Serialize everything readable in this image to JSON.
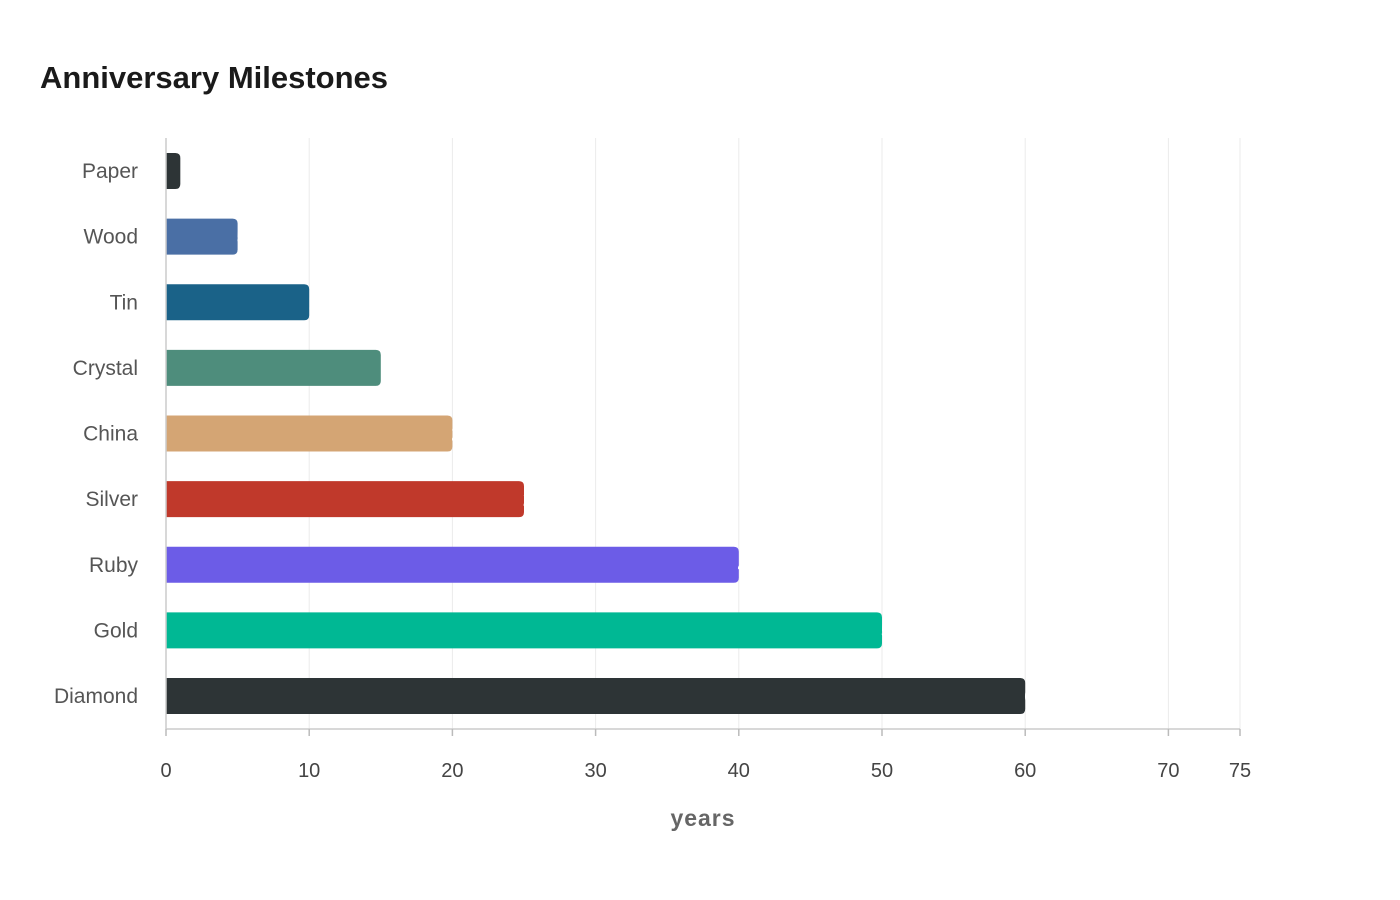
{
  "chart_data": {
    "type": "bar",
    "orientation": "horizontal",
    "title": "Anniversary Milestones",
    "xlabel": "years",
    "ylabel": "",
    "categories": [
      "Paper",
      "Wood",
      "Tin",
      "Crystal",
      "China",
      "Silver",
      "Ruby",
      "Gold",
      "Diamond"
    ],
    "values": [
      1,
      5,
      10,
      15,
      20,
      25,
      40,
      50,
      60
    ],
    "colors": [
      "#2d3436",
      "#4a6fa5",
      "#1a6288",
      "#4e8d7c",
      "#d4a574",
      "#c0392b",
      "#6c5ce7",
      "#00b894",
      "#2d3436"
    ],
    "xlim": [
      0,
      75
    ],
    "xticks": [
      0,
      10,
      20,
      30,
      40,
      50,
      60,
      70,
      75
    ],
    "grid": true,
    "legend": "none"
  }
}
